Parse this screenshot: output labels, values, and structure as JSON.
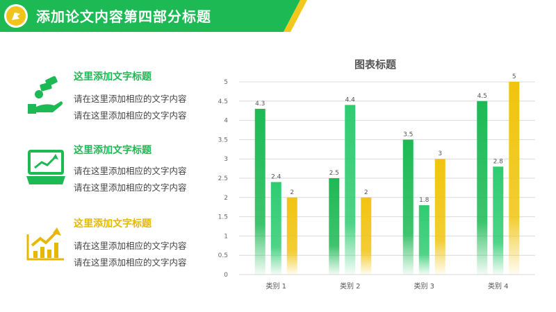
{
  "header": {
    "title": "添加论文内容第四部分标题",
    "logo_icon": "flag-logo-icon",
    "colors": {
      "bar": "#1db954",
      "stripe": "#f3c81e"
    }
  },
  "items": [
    {
      "title": "这里添加文字标题",
      "lines": [
        "请在这里添加相应的文字内容",
        "请在这里添加相应的文字内容"
      ],
      "icon": "money-hand-icon",
      "color": "#1db954"
    },
    {
      "title": "这里添加文字标题",
      "lines": [
        "请在这里添加相应的文字内容",
        "请在这里添加相应的文字内容"
      ],
      "icon": "laptop-chart-icon",
      "color": "#1db954"
    },
    {
      "title": "这里添加文字标题",
      "lines": [
        "请在这里添加相应的文字内容",
        "请在这里添加相应的文字内容"
      ],
      "icon": "bar-growth-icon",
      "color": "#e6b800"
    }
  ],
  "chart_data": {
    "type": "bar",
    "title": "图表标题",
    "categories": [
      "类别 1",
      "类别 2",
      "类别 3",
      "类别 4"
    ],
    "series": [
      {
        "values": [
          4.3,
          2.5,
          3.5,
          4.5
        ],
        "color": "#1db954"
      },
      {
        "values": [
          2.4,
          4.4,
          1.8,
          2.8
        ],
        "color": "#2ecc71"
      },
      {
        "values": [
          2,
          2,
          3,
          5
        ],
        "color": "#f1c40f"
      }
    ],
    "ylim": [
      0,
      5
    ],
    "yticks": [
      "0",
      "0.5",
      "1",
      "1.5",
      "2",
      "2.5",
      "3",
      "3.5",
      "4",
      "4.5",
      "5"
    ],
    "grid": true,
    "legend": "none"
  }
}
